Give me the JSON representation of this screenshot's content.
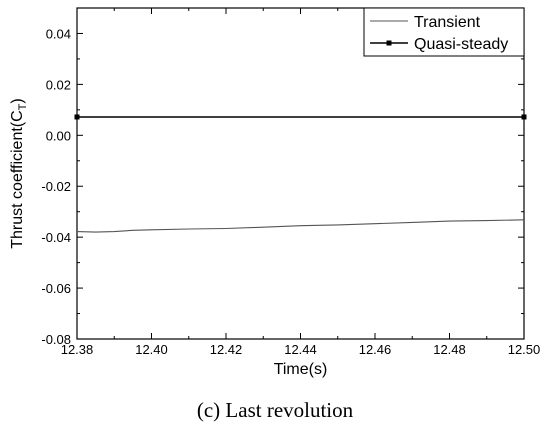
{
  "caption": "(c) Last revolution",
  "chart_data": {
    "type": "line",
    "title": "",
    "xlabel": "Time(s)",
    "ylabel_main": "Thrust coefficient(C",
    "ylabel_sub": "T",
    "ylabel_close": ")",
    "xlim": [
      12.38,
      12.5
    ],
    "ylim": [
      -0.08,
      0.05
    ],
    "xticks": [
      12.38,
      12.4,
      12.42,
      12.44,
      12.46,
      12.48,
      12.5
    ],
    "xtick_labels": [
      "12.38",
      "12.40",
      "12.42",
      "12.44",
      "12.46",
      "12.48",
      "12.50"
    ],
    "yticks": [
      -0.08,
      -0.06,
      -0.04,
      -0.02,
      0.0,
      0.02,
      0.04
    ],
    "ytick_labels": [
      "-0.08",
      "-0.06",
      "-0.04",
      "-0.02",
      "0.00",
      "0.02",
      "0.04"
    ],
    "grid": false,
    "legend_position": "top-right",
    "series": [
      {
        "name": "Transient",
        "color": "#555555",
        "marker": "none",
        "x": [
          12.38,
          12.385,
          12.39,
          12.395,
          12.4,
          12.41,
          12.42,
          12.43,
          12.44,
          12.45,
          12.46,
          12.47,
          12.48,
          12.49,
          12.5
        ],
        "y": [
          -0.0378,
          -0.038,
          -0.0378,
          -0.0373,
          -0.0371,
          -0.0368,
          -0.0366,
          -0.0361,
          -0.0355,
          -0.0352,
          -0.0347,
          -0.0342,
          -0.0337,
          -0.0335,
          -0.0332
        ]
      },
      {
        "name": "Quasi-steady",
        "color": "#000000",
        "marker": "square",
        "x": [
          12.38,
          12.5
        ],
        "y": [
          0.0072,
          0.0072
        ]
      }
    ]
  }
}
